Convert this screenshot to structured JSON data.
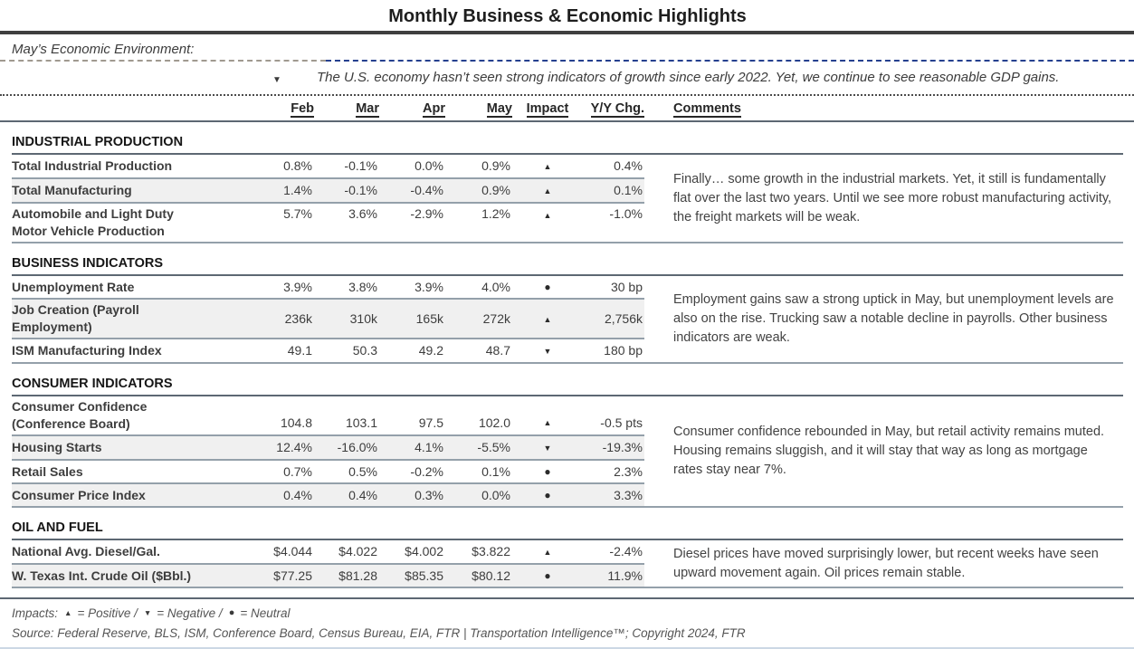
{
  "title": "Monthly Business & Economic Highlights",
  "environment": {
    "label": "May’s Economic Environment:",
    "impact": "down",
    "summary": "The U.S. economy hasn’t seen strong indicators of growth since early 2022. Yet, we continue to see reasonable GDP gains."
  },
  "columns": {
    "months": [
      "Feb",
      "Mar",
      "Apr",
      "May"
    ],
    "impact": "Impact",
    "yy": "Y/Y Chg.",
    "comments": "Comments"
  },
  "impact_symbols": {
    "up": "▲",
    "down": "▼",
    "neutral": "●"
  },
  "sections": [
    {
      "name": "INDUSTRIAL PRODUCTION",
      "comment": "Finally… some growth in the industrial markets. Yet, it still is fundamentally flat over the last two years. Until we see more robust manufacturing activity, the freight markets will be weak.",
      "rows": [
        {
          "label": "Total Industrial Production",
          "values": [
            "0.8%",
            "-0.1%",
            "0.0%",
            "0.9%"
          ],
          "impact": "up",
          "yy": "0.4%",
          "shaded": false
        },
        {
          "label": "Total Manufacturing",
          "values": [
            "1.4%",
            "-0.1%",
            "-0.4%",
            "0.9%"
          ],
          "impact": "up",
          "yy": "0.1%",
          "shaded": true
        },
        {
          "label": "Automobile and Light Duty\nMotor Vehicle Production",
          "values": [
            "5.7%",
            "3.6%",
            "-2.9%",
            "1.2%"
          ],
          "impact": "up",
          "yy": "-1.0%",
          "shaded": false,
          "valign": "top"
        }
      ]
    },
    {
      "name": "BUSINESS INDICATORS",
      "comment": "Employment gains saw a strong uptick in May, but unemployment levels are also on the rise. Trucking saw a notable decline in payrolls. Other business indicators are weak.",
      "rows": [
        {
          "label": "Unemployment Rate",
          "values": [
            "3.9%",
            "3.8%",
            "3.9%",
            "4.0%"
          ],
          "impact": "neutral",
          "yy": "30 bp",
          "shaded": false
        },
        {
          "label": "Job Creation (Payroll\nEmployment)",
          "values": [
            "236k",
            "310k",
            "165k",
            "272k"
          ],
          "impact": "up",
          "yy": "2,756k",
          "shaded": true,
          "valign": "center"
        },
        {
          "label": "ISM Manufacturing Index",
          "values": [
            "49.1",
            "50.3",
            "49.2",
            "48.7"
          ],
          "impact": "down",
          "yy": "180 bp",
          "shaded": false
        }
      ]
    },
    {
      "name": "CONSUMER INDICATORS",
      "comment": "Consumer confidence rebounded in May, but retail activity remains muted. Housing remains sluggish, and it will stay that way as long as mortgage rates stay near 7%.",
      "rows": [
        {
          "label": "Consumer Confidence\n(Conference Board)",
          "values": [
            "104.8",
            "103.1",
            "97.5",
            "102.0"
          ],
          "impact": "up",
          "yy": "-0.5 pts",
          "shaded": false,
          "valign": "bottom"
        },
        {
          "label": "Housing Starts",
          "values": [
            "12.4%",
            "-16.0%",
            "4.1%",
            "-5.5%"
          ],
          "impact": "down",
          "yy": "-19.3%",
          "shaded": true
        },
        {
          "label": "Retail Sales",
          "values": [
            "0.7%",
            "0.5%",
            "-0.2%",
            "0.1%"
          ],
          "impact": "neutral",
          "yy": "2.3%",
          "shaded": false
        },
        {
          "label": "Consumer Price Index",
          "values": [
            "0.4%",
            "0.4%",
            "0.3%",
            "0.0%"
          ],
          "impact": "neutral",
          "yy": "3.3%",
          "shaded": true
        }
      ]
    },
    {
      "name": "OIL AND FUEL",
      "comment": "Diesel prices have moved surprisingly lower, but recent weeks have seen upward movement again. Oil prices remain stable.",
      "rows": [
        {
          "label": "National Avg. Diesel/Gal.",
          "values": [
            "$4.044",
            "$4.022",
            "$4.002",
            "$3.822"
          ],
          "impact": "up",
          "yy": "-2.4%",
          "shaded": false
        },
        {
          "label": "W. Texas Int. Crude Oil ($Bbl.)",
          "values": [
            "$77.25",
            "$81.28",
            "$85.35",
            "$80.12"
          ],
          "impact": "neutral",
          "yy": "11.9%",
          "shaded": true
        }
      ]
    }
  ],
  "footer": {
    "impacts_label": "Impacts:",
    "legend": [
      {
        "impact": "up",
        "label": "= Positive /"
      },
      {
        "impact": "down",
        "label": "= Negative /"
      },
      {
        "impact": "neutral",
        "label": "= Neutral"
      }
    ],
    "source": "Source: Federal Reserve, BLS, ISM, Conference Board, Census Bureau, EIA, FTR | Transportation Intelligence™; Copyright 2024, FTR"
  },
  "colors": {
    "title_rule": "#3f3f3f",
    "section_rule": "#5d6873",
    "row_border": "#94a0aa",
    "shaded_row": "#f0f0f0",
    "dashed_navy": "#25408f",
    "bottom_rule": "#ccd8e5"
  }
}
